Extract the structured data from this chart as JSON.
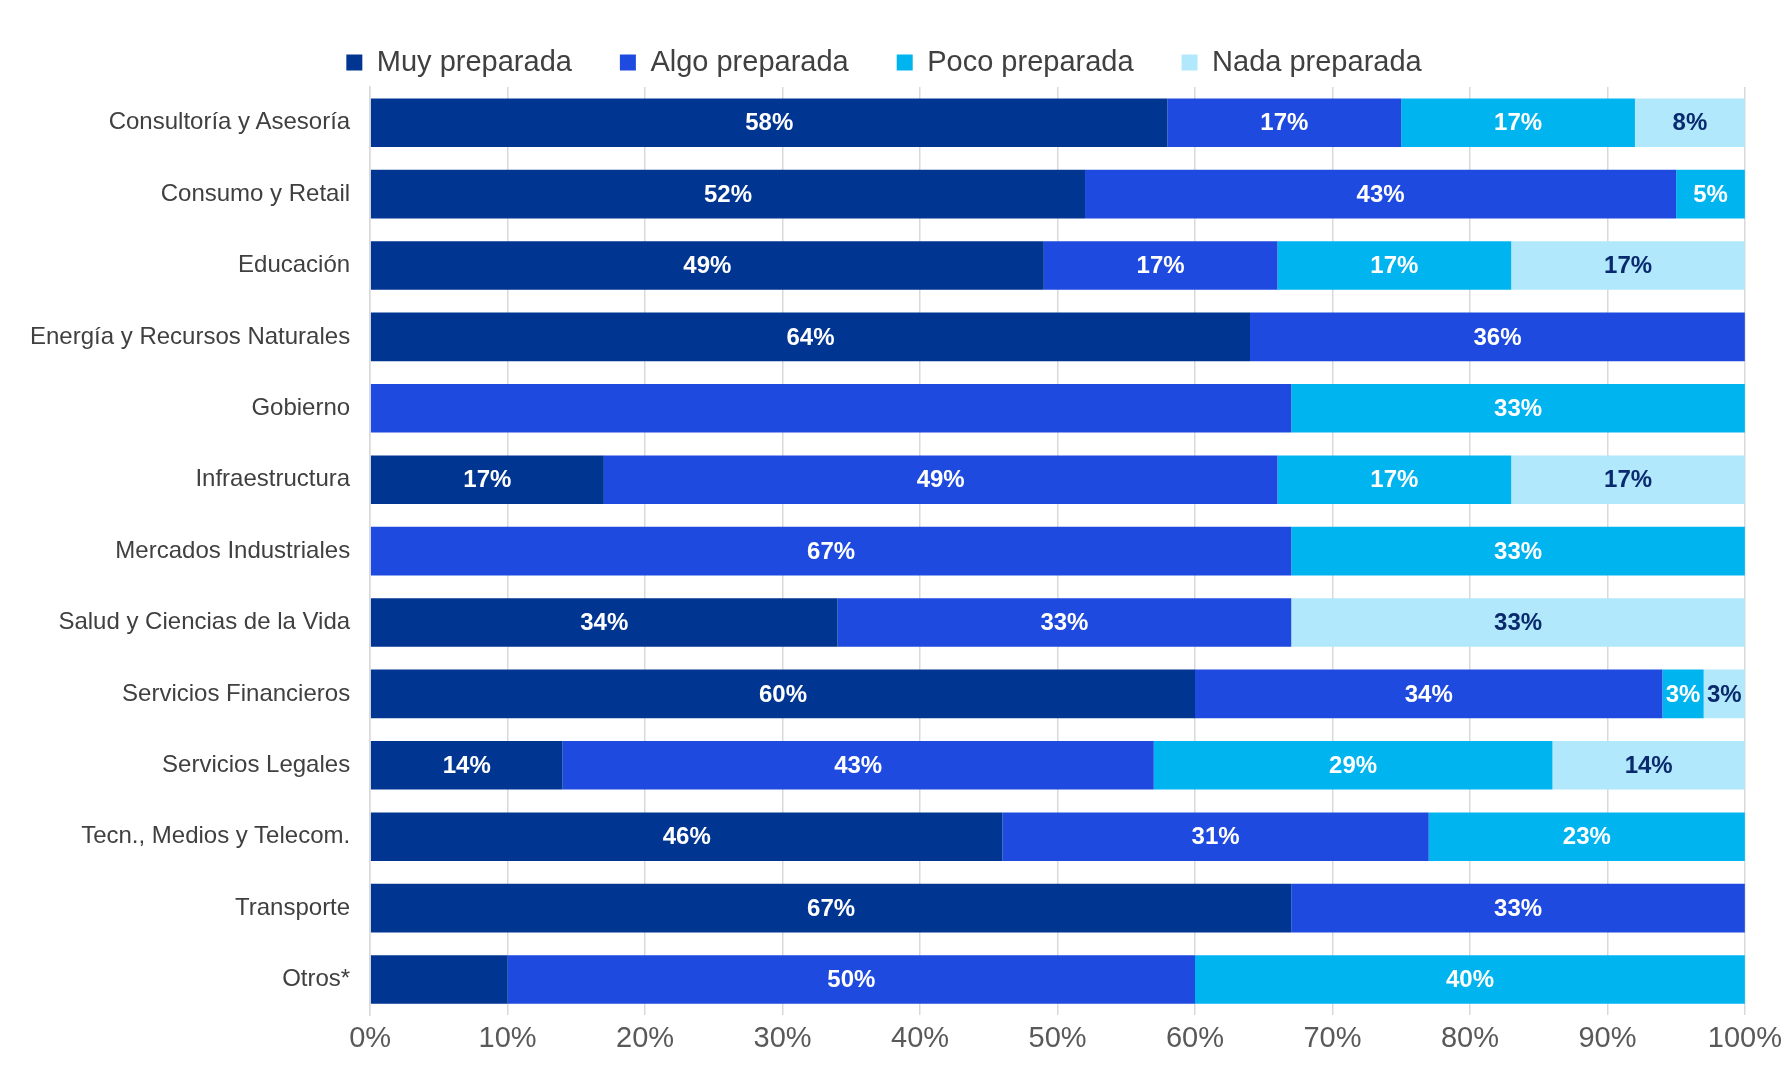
{
  "chart_data": {
    "type": "bar",
    "orientation": "horizontal",
    "stacked": true,
    "categories": [
      "Consultoría y Asesoría",
      "Consumo y Retail",
      "Educación",
      "Energía y Recursos Naturales",
      "Gobierno",
      "Infraestructura",
      "Mercados Industriales",
      "Salud y Ciencias de la Vida",
      "Servicios Financieros",
      "Servicios Legales",
      "Tecn., Medios y Telecom.",
      "Transporte",
      "Otros*"
    ],
    "series": [
      {
        "name": "Muy preparada",
        "color": "#003591",
        "values": [
          58,
          52,
          49,
          64,
          null,
          17,
          null,
          34,
          60,
          14,
          46,
          67,
          10
        ],
        "value_labels": [
          "58%",
          "52%",
          "49%",
          "64%",
          null,
          "17%",
          null,
          "34%",
          "60%",
          "14%",
          "46%",
          "67%",
          null
        ]
      },
      {
        "name": "Algo preparada",
        "color": "#1f4ae0",
        "values": [
          17,
          43,
          17,
          36,
          67,
          49,
          67,
          33,
          34,
          43,
          31,
          33,
          50
        ],
        "value_labels": [
          "17%",
          "43%",
          "17%",
          "36%",
          null,
          "49%",
          "67%",
          "33%",
          "34%",
          "43%",
          "31%",
          "33%",
          "50%"
        ]
      },
      {
        "name": "Poco preparada",
        "color": "#00b4f0",
        "values": [
          17,
          5,
          17,
          null,
          33,
          17,
          33,
          null,
          3,
          29,
          23,
          null,
          40
        ],
        "value_labels": [
          "17%",
          "5%",
          "17%",
          null,
          "33%",
          "17%",
          "33%",
          null,
          "3%",
          "29%",
          "23%",
          null,
          "40%"
        ]
      },
      {
        "name": "Nada preparada",
        "color": "#b2e8fb",
        "values": [
          8,
          null,
          17,
          null,
          null,
          17,
          null,
          33,
          3,
          14,
          null,
          null,
          null
        ],
        "value_labels": [
          "8%",
          null,
          "17%",
          null,
          null,
          "17%",
          null,
          "33%",
          "3%",
          "14%",
          null,
          null,
          null
        ]
      }
    ],
    "xlim": [
      0,
      100
    ],
    "xticks": [
      {
        "value": 0,
        "label": "0%"
      },
      {
        "value": 10,
        "label": "10%"
      },
      {
        "value": 20,
        "label": "20%"
      },
      {
        "value": 30,
        "label": "30%"
      },
      {
        "value": 40,
        "label": "40%"
      },
      {
        "value": 50,
        "label": "50%"
      },
      {
        "value": 60,
        "label": "60%"
      },
      {
        "value": 70,
        "label": "70%"
      },
      {
        "value": 80,
        "label": "80%"
      },
      {
        "value": 90,
        "label": "90%"
      },
      {
        "value": 100,
        "label": "100%"
      }
    ],
    "grid": "x",
    "legend": "top"
  }
}
